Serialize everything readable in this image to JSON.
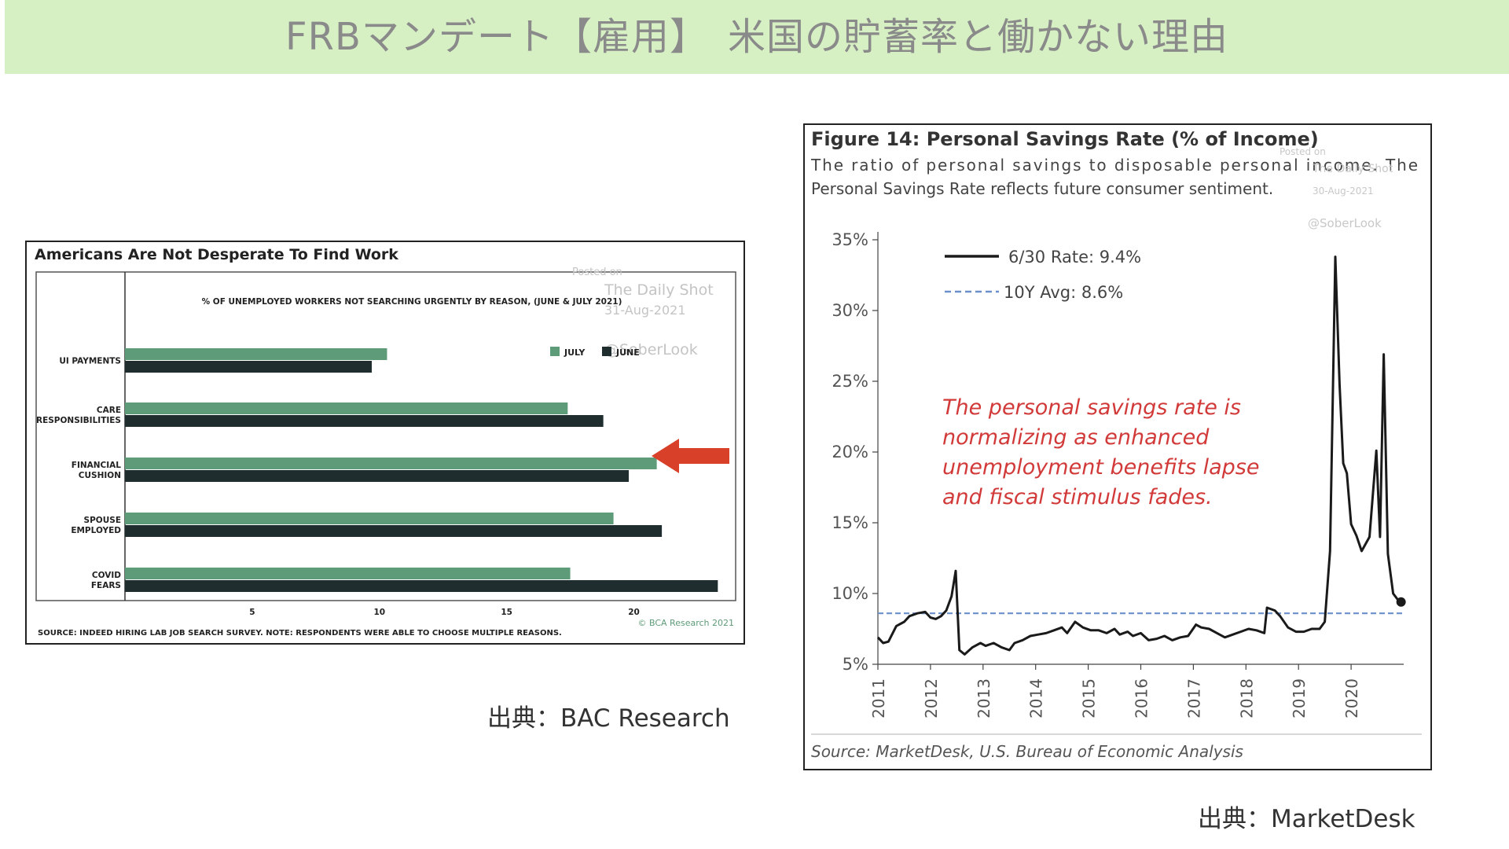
{
  "slide": {
    "title": "FRBマンデート【雇用】　米国の貯蓄率と働かない理由",
    "left_caption": "出典：BAC Research",
    "right_caption": "出典：MarketDesk"
  },
  "watermark": {
    "posted_on": "Posted on",
    "site": "The Daily Shot",
    "handle": "@SoberLook",
    "left_date": "31-Aug-2021",
    "right_date": "30-Aug-2021"
  },
  "colors": {
    "title_band": "#d6f0c4",
    "july": "#5e9b78",
    "june": "#1f2d2f",
    "arrow": "#d9402a",
    "savings_line": "#1a1a1a",
    "avg_line": "#6b8fcb",
    "annotation": "#d23a3a"
  },
  "chart_data": [
    {
      "type": "bar",
      "orientation": "horizontal",
      "title": "Americans Are Not Desperate To Find Work",
      "subtitle": "% OF UNEMPLOYED WORKERS NOT SEARCHING URGENTLY BY REASON, (JUNE & JULY 2021)",
      "categories": [
        "UI PAYMENTS",
        "CARE RESPONSIBILITIES",
        "FINANCIAL CUSHION",
        "SPOUSE EMPLOYED",
        "COVID FEARS"
      ],
      "category_lines": [
        [
          "UI PAYMENTS"
        ],
        [
          "CARE",
          "RESPONSIBILITIES"
        ],
        [
          "FINANCIAL",
          "CUSHION"
        ],
        [
          "SPOUSE",
          "EMPLOYED"
        ],
        [
          "COVID",
          "FEARS"
        ]
      ],
      "series": [
        {
          "name": "JULY",
          "values": [
            10.3,
            17.4,
            20.9,
            19.2,
            17.5
          ]
        },
        {
          "name": "JUNE",
          "values": [
            9.7,
            18.8,
            19.8,
            21.1,
            23.3
          ]
        }
      ],
      "xlim": [
        0,
        24
      ],
      "xticks": [
        5,
        10,
        15,
        20
      ],
      "legend_position": "top-right",
      "highlight_category": "FINANCIAL CUSHION",
      "source": "SOURCE: INDEED HIRING LAB JOB SEARCH SURVEY. NOTE: RESPONDENTS WERE ABLE TO CHOOSE MULTIPLE REASONS.",
      "copyright": "© BCA Research 2021"
    },
    {
      "type": "line",
      "title": "Figure 14: Personal Savings Rate (% of Income)",
      "subtitle_lines": [
        "The ratio of personal savings to disposable personal income. The",
        "Personal Savings Rate reflects future consumer sentiment."
      ],
      "ylim": [
        5,
        35
      ],
      "yticks": [
        5,
        10,
        15,
        20,
        25,
        30,
        35
      ],
      "ytick_labels": [
        "5%",
        "10%",
        "15%",
        "20%",
        "25%",
        "30%",
        "35%"
      ],
      "xlim": [
        2011,
        2021.0
      ],
      "xticks": [
        2011,
        2012,
        2013,
        2014,
        2015,
        2016,
        2017,
        2018,
        2019,
        2020
      ],
      "series": [
        {
          "name": "6/30 Rate",
          "x": [
            2011.0,
            2011.1,
            2011.2,
            2011.35,
            2011.5,
            2011.6,
            2011.75,
            2011.9,
            2012.0,
            2012.1,
            2012.2,
            2012.3,
            2012.4,
            2012.48,
            2012.55,
            2012.65,
            2012.8,
            2012.95,
            2013.05,
            2013.2,
            2013.35,
            2013.5,
            2013.6,
            2013.75,
            2013.9,
            2014.05,
            2014.2,
            2014.35,
            2014.5,
            2014.6,
            2014.75,
            2014.9,
            2015.05,
            2015.2,
            2015.35,
            2015.5,
            2015.6,
            2015.75,
            2015.85,
            2016.0,
            2016.15,
            2016.3,
            2016.45,
            2016.6,
            2016.75,
            2016.9,
            2017.05,
            2017.15,
            2017.3,
            2017.45,
            2017.6,
            2017.75,
            2017.9,
            2018.05,
            2018.2,
            2018.35,
            2018.4,
            2018.55,
            2018.65,
            2018.8,
            2018.95,
            2019.1,
            2019.25,
            2019.4,
            2019.5,
            2019.6,
            2019.7,
            2019.78,
            2019.85,
            2019.92,
            2020.0,
            2020.1,
            2020.2,
            2020.35,
            2020.48,
            2020.55,
            2020.62,
            2020.7,
            2020.8,
            2020.88,
            2020.95
          ],
          "y": [
            6.9,
            6.5,
            6.6,
            7.7,
            8.0,
            8.4,
            8.6,
            8.7,
            8.3,
            8.2,
            8.4,
            8.8,
            9.8,
            11.6,
            6.0,
            5.7,
            6.2,
            6.5,
            6.3,
            6.5,
            6.2,
            6.0,
            6.5,
            6.7,
            7.0,
            7.1,
            7.2,
            7.4,
            7.6,
            7.2,
            8.0,
            7.6,
            7.4,
            7.4,
            7.2,
            7.5,
            7.1,
            7.3,
            7.0,
            7.2,
            6.7,
            6.8,
            7.0,
            6.7,
            6.9,
            7.0,
            7.8,
            7.6,
            7.5,
            7.2,
            6.9,
            7.1,
            7.3,
            7.5,
            7.4,
            7.2,
            9.0,
            8.8,
            8.4,
            7.6,
            7.3,
            7.3,
            7.5,
            7.5,
            8.0,
            13.0,
            33.8,
            24.8,
            19.2,
            18.5,
            14.9,
            14.1,
            13.0,
            14.0,
            20.1,
            14.0,
            26.9,
            12.8,
            10.0,
            9.6,
            9.4
          ]
        },
        {
          "name": "10Y Avg",
          "constant": 8.6
        }
      ],
      "legend": [
        {
          "name": "6/30 Rate",
          "label": "6/30 Rate:  9.4%"
        },
        {
          "name": "10Y Avg",
          "label": "10Y Avg:  8.6%"
        }
      ],
      "legend_position": "top-left",
      "annotation_lines": [
        "The personal savings rate is",
        "normalizing as enhanced",
        "unemployment benefits lapse",
        "and fiscal stimulus fades."
      ],
      "source": "Source: MarketDesk, U.S. Bureau of Economic Analysis"
    }
  ]
}
